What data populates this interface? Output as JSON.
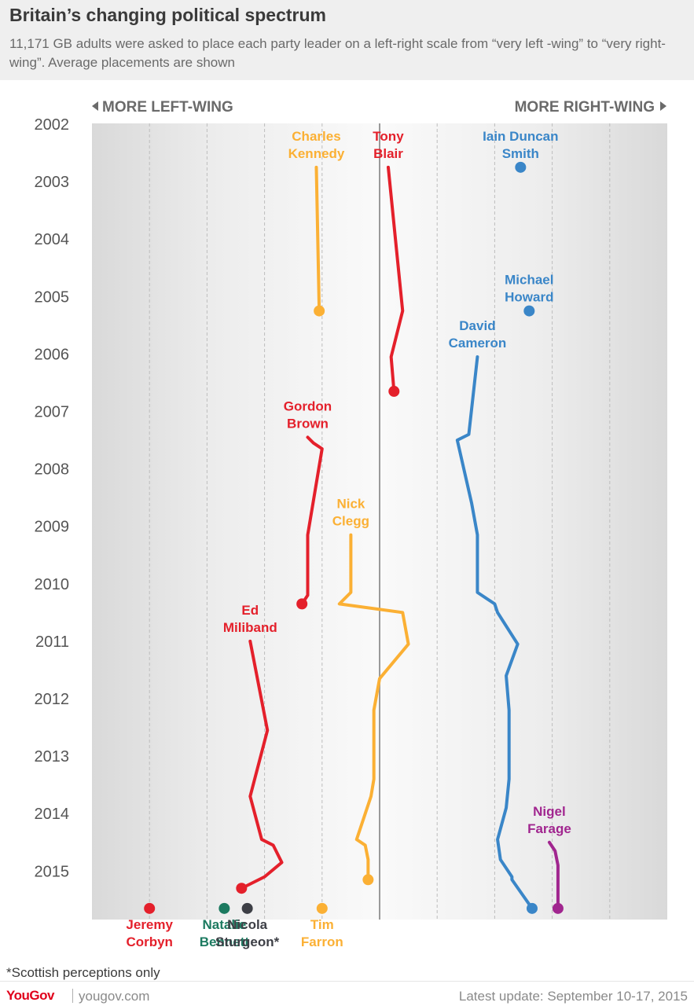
{
  "header": {
    "title": "Britain’s changing political spectrum",
    "subtitle": "11,171 GB adults were asked to place each party leader on a left-right scale from “very left -wing” to “very right-wing”. Average placements are shown"
  },
  "chart_data": {
    "type": "line",
    "left_label": "MORE LEFT-WING",
    "right_label": "MORE RIGHT-WING",
    "y_ticks": [
      "2002",
      "2003",
      "2004",
      "2005",
      "2006",
      "2007",
      "2008",
      "2009",
      "2010",
      "2011",
      "2012",
      "2013",
      "2014",
      "2015"
    ],
    "y_range": [
      2002,
      2015.7
    ],
    "x_range": [
      -100,
      100
    ],
    "x_gridlines": [
      -80,
      -60,
      -40,
      -20,
      20,
      40,
      60,
      80
    ],
    "centre_line": 0,
    "colors": {
      "labour": "#e4202b",
      "libdem": "#fbb034",
      "conservative": "#3a86c8",
      "ukip": "#a1268f",
      "green": "#1c7a60",
      "snp": "#3d3f46"
    },
    "series": [
      {
        "name": "Tony Blair",
        "color": "#e4202b",
        "label_lines": [
          "Tony",
          "Blair"
        ],
        "points": [
          [
            3,
            2002.75
          ],
          [
            8,
            2005.25
          ],
          [
            4,
            2006.05
          ],
          [
            5,
            2006.65
          ]
        ]
      },
      {
        "name": "Charles Kennedy",
        "color": "#fbb034",
        "label_lines": [
          "Charles",
          "Kennedy"
        ],
        "points": [
          [
            -22,
            2002.75
          ],
          [
            -21,
            2005.25
          ]
        ]
      },
      {
        "name": "Iain Duncan Smith",
        "color": "#3a86c8",
        "label_lines": [
          "Iain Duncan",
          "Smith"
        ],
        "points": [
          [
            49,
            2002.75
          ]
        ]
      },
      {
        "name": "Michael Howard",
        "color": "#3a86c8",
        "label_lines": [
          "Michael",
          "Howard"
        ],
        "points": [
          [
            52,
            2005.25
          ]
        ]
      },
      {
        "name": "David Cameron",
        "color": "#3a86c8",
        "label_lines": [
          "David",
          "Cameron"
        ],
        "points": [
          [
            34,
            2006.05
          ],
          [
            33,
            2006.5
          ],
          [
            31,
            2007.4
          ],
          [
            27,
            2007.5
          ],
          [
            32,
            2008.6
          ],
          [
            34,
            2009.15
          ],
          [
            34,
            2010.15
          ],
          [
            40,
            2010.35
          ],
          [
            41,
            2010.5
          ],
          [
            48,
            2011.05
          ],
          [
            44,
            2011.6
          ],
          [
            45,
            2012.2
          ],
          [
            45,
            2012.5
          ],
          [
            45,
            2013.4
          ],
          [
            44,
            2013.9
          ],
          [
            41,
            2014.45
          ],
          [
            42,
            2014.8
          ],
          [
            46,
            2015.1
          ],
          [
            46,
            2015.15
          ],
          [
            53,
            2015.65
          ]
        ]
      },
      {
        "name": "Gordon Brown",
        "color": "#e4202b",
        "label_lines": [
          "Gordon",
          "Brown"
        ],
        "points": [
          [
            -25,
            2007.45
          ],
          [
            -23,
            2007.55
          ],
          [
            -20,
            2007.65
          ],
          [
            -25,
            2009.15
          ],
          [
            -25,
            2010.2
          ],
          [
            -27,
            2010.35
          ]
        ]
      },
      {
        "name": "Nick Clegg",
        "color": "#fbb034",
        "label_lines": [
          "Nick",
          "Clegg"
        ],
        "points": [
          [
            -10,
            2009.15
          ],
          [
            -10,
            2010.15
          ],
          [
            -14,
            2010.35
          ],
          [
            8,
            2010.5
          ],
          [
            10,
            2011.05
          ],
          [
            0,
            2011.65
          ],
          [
            -2,
            2012.2
          ],
          [
            -2,
            2012.5
          ],
          [
            -2,
            2013.4
          ],
          [
            -3,
            2013.7
          ],
          [
            -8,
            2014.45
          ],
          [
            -5,
            2014.55
          ],
          [
            -4,
            2014.8
          ],
          [
            -4,
            2015.15
          ]
        ]
      },
      {
        "name": "Ed Miliband",
        "color": "#e4202b",
        "label_lines": [
          "Ed",
          "Miliband"
        ],
        "points": [
          [
            -45,
            2011.0
          ],
          [
            -39,
            2012.55
          ],
          [
            -45,
            2013.7
          ],
          [
            -41,
            2014.45
          ],
          [
            -37,
            2014.55
          ],
          [
            -34,
            2014.85
          ],
          [
            -40,
            2015.1
          ],
          [
            -48,
            2015.3
          ]
        ]
      },
      {
        "name": "Nigel Farage",
        "color": "#a1268f",
        "label_lines": [
          "Nigel",
          "Farage"
        ],
        "points": [
          [
            59,
            2014.5
          ],
          [
            61,
            2014.65
          ],
          [
            62,
            2014.9
          ],
          [
            62,
            2015.65
          ]
        ]
      }
    ],
    "current_leaders": [
      {
        "name": "Jeremy Corbyn",
        "x": -80,
        "color": "#e4202b",
        "label_lines": [
          "Jeremy",
          "Corbyn"
        ]
      },
      {
        "name": "Natalie Bennett",
        "x": -54,
        "color": "#1c7a60",
        "label_lines": [
          "Natalie",
          "Bennett"
        ]
      },
      {
        "name": "Nicola Sturgeon",
        "x": -46,
        "color": "#3d3f46",
        "label_lines": [
          "Nicola",
          "Sturgeon*"
        ]
      },
      {
        "name": "Tim Farron",
        "x": -20,
        "color": "#fbb034",
        "label_lines": [
          "Tim",
          "Farron"
        ]
      }
    ]
  },
  "footer": {
    "footnote": "*Scottish perceptions only",
    "brand": "YouGov",
    "site": "yougov.com",
    "update": "Latest update: September 10-17, 2015"
  }
}
